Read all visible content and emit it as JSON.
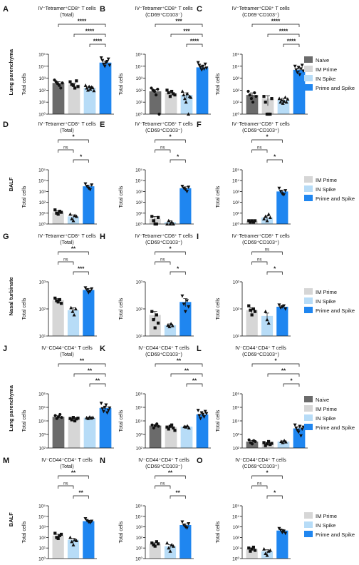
{
  "colors": {
    "Naive": "#6b6b6b",
    "IM Prime": "#d6d6d6",
    "IN Spike": "#b7dcf7",
    "Prime and Spike": "#1f86f0"
  },
  "row_labels": [
    "Lung parenchyma",
    "BALF",
    "Nasal turbinate",
    "Lung parenchyma",
    "BALF"
  ],
  "legends": [
    [
      "Naive",
      "IM Prime",
      "IN Spike",
      "Prime and Spike"
    ],
    [
      "IM Prime",
      "IN Spike",
      "Prime and Spike"
    ],
    [
      "IM Prime",
      "IN Spike",
      "Prime and Spike"
    ],
    [
      "Naive",
      "IM Prime",
      "IN Spike",
      "Prime and Spike"
    ],
    [
      "IM Prime",
      "IN Spike",
      "Prime and Spike"
    ]
  ],
  "chart_data": [
    {
      "panel": "A",
      "type": "bar",
      "title": [
        "IV⁻Tetramer⁺CD8⁺ T cells",
        "(Total)"
      ],
      "ylabel": "Total cells",
      "yscale": "log",
      "ylim": [
        1,
        100000
      ],
      "yticks": [
        "10⁰",
        "10¹",
        "10²",
        "10³",
        "10⁴",
        "10⁵"
      ],
      "categories": [
        "Naive",
        "IM Prime",
        "IN Spike",
        "Prime and Spike"
      ],
      "values": [
        400,
        300,
        160,
        20000
      ],
      "errors": [
        120,
        90,
        40,
        6000
      ],
      "points": [
        [
          700,
          500,
          350,
          250,
          150,
          400
        ],
        [
          500,
          300,
          250,
          150,
          600,
          200
        ],
        [
          250,
          150,
          100,
          200,
          120,
          180,
          160,
          90
        ],
        [
          50000,
          30000,
          15000,
          10000,
          20000,
          25000,
          40000,
          12000
        ]
      ],
      "sig": [
        [
          "****",
          0,
          3
        ],
        [
          "****",
          1,
          3
        ],
        [
          "****",
          2,
          3
        ]
      ]
    },
    {
      "panel": "B",
      "type": "bar",
      "title": [
        "IV⁻Tetramer⁺CD8⁺ T cells",
        "(CD69⁺CD103⁻)"
      ],
      "ylabel": "Total cells",
      "yscale": "log",
      "ylim": [
        1,
        100000
      ],
      "yticks": [
        "10⁰",
        "10¹",
        "10²",
        "10³",
        "10⁴",
        "10⁵"
      ],
      "categories": [
        "Naive",
        "IM Prime",
        "IN Spike",
        "Prime and Spike"
      ],
      "values": [
        80,
        60,
        40,
        8000
      ],
      "errors": [
        30,
        20,
        20,
        3000
      ],
      "points": [
        [
          150,
          100,
          80,
          40,
          120,
          1
        ],
        [
          100,
          60,
          30,
          80,
          50,
          40
        ],
        [
          80,
          40,
          20,
          10,
          50,
          1,
          30,
          25
        ],
        [
          20000,
          12000,
          8000,
          5000,
          10000,
          6000,
          15000,
          7000
        ]
      ],
      "sig": [
        [
          "***",
          0,
          3
        ],
        [
          "***",
          1,
          3
        ],
        [
          "****",
          2,
          3
        ]
      ]
    },
    {
      "panel": "C",
      "type": "bar",
      "title": [
        "IV⁻Tetramer⁺CD8⁺ T cells",
        "(CD69⁺CD103⁺)"
      ],
      "ylabel": "Total cells",
      "yscale": "log",
      "ylim": [
        1,
        100000
      ],
      "yticks": [
        "10⁰",
        "10¹",
        "10²",
        "10³",
        "10⁴",
        "10⁵"
      ],
      "categories": [
        "Naive",
        "IM Prime",
        "IN Spike",
        "Prime and Spike"
      ],
      "values": [
        40,
        20,
        15,
        5000
      ],
      "errors": [
        20,
        15,
        6,
        2000
      ],
      "points": [
        [
          80,
          40,
          20,
          10,
          60,
          30
        ],
        [
          30,
          10,
          1,
          1,
          1,
          20
        ],
        [
          20,
          10,
          15,
          8,
          12,
          25,
          10,
          18
        ],
        [
          10000,
          5000,
          3000,
          8000,
          2000,
          6000,
          12000,
          4000
        ]
      ],
      "sig": [
        [
          "****",
          0,
          3
        ],
        [
          "****",
          1,
          3
        ],
        [
          "****",
          2,
          3
        ]
      ]
    },
    {
      "panel": "D",
      "type": "bar",
      "title": [
        "IV⁻Tetramer⁺CD8⁺ T cells",
        "(Total)"
      ],
      "ylabel": "Total cells",
      "yscale": "log",
      "ylim": [
        1,
        100000
      ],
      "yticks": [
        "10⁰",
        "10¹",
        "10²",
        "10³",
        "10⁴",
        "10⁵"
      ],
      "categories": [
        "IM Prime",
        "IN Spike",
        "Prime and Spike"
      ],
      "values": [
        12,
        5,
        3000
      ],
      "errors": [
        4,
        2,
        800
      ],
      "points": [
        [
          20,
          10,
          8,
          15,
          12
        ],
        [
          8,
          3,
          2,
          6,
          5
        ],
        [
          5000,
          3000,
          2000,
          1500,
          4000
        ]
      ],
      "sig": [
        [
          "*",
          0,
          2
        ],
        [
          "ns",
          0,
          1
        ],
        [
          "*",
          1,
          2
        ]
      ]
    },
    {
      "panel": "E",
      "type": "bar",
      "title": [
        "IV⁻Tetramer⁺CD8⁺ T cells",
        "(CD69⁺CD103⁻)"
      ],
      "ylabel": "Total cells",
      "yscale": "log",
      "ylim": [
        1,
        100000
      ],
      "yticks": [
        "10⁰",
        "10¹",
        "10²",
        "10³",
        "10⁴",
        "10⁵"
      ],
      "categories": [
        "IM Prime",
        "IN Spike",
        "Prime and Spike"
      ],
      "values": [
        3,
        1.5,
        2000
      ],
      "errors": [
        2,
        0.5,
        700
      ],
      "points": [
        [
          5,
          2,
          1,
          1,
          4
        ],
        [
          1,
          2,
          1,
          1.5,
          1
        ],
        [
          3000,
          2000,
          1500,
          1000,
          2500
        ]
      ],
      "sig": [
        [
          "*",
          0,
          2
        ],
        [
          "ns",
          0,
          1
        ],
        [
          "*",
          1,
          2
        ]
      ]
    },
    {
      "panel": "F",
      "type": "bar",
      "title": [
        "IV⁻Tetramer⁺CD8⁺ T cells",
        "(CD69⁺CD103⁺)"
      ],
      "ylabel": "Total cells",
      "yscale": "log",
      "ylim": [
        1,
        100000
      ],
      "yticks": [
        "10⁰",
        "10¹",
        "10²",
        "10³",
        "10⁴",
        "10⁵"
      ],
      "categories": [
        "IM Prime",
        "IN Spike",
        "Prime and Spike"
      ],
      "values": [
        2,
        4,
        1000
      ],
      "errors": [
        0.5,
        1.5,
        300
      ],
      "points": [
        [
          2,
          1.5,
          2,
          1.5,
          2
        ],
        [
          3,
          5,
          2,
          8,
          4
        ],
        [
          2000,
          1000,
          600,
          500,
          1200
        ]
      ],
      "sig": [
        [
          "*",
          0,
          2
        ],
        [
          "ns",
          0,
          1
        ],
        [
          "*",
          1,
          2
        ]
      ]
    },
    {
      "panel": "G",
      "type": "bar",
      "title": [
        "IV⁻Tetramer⁺CD8⁺ T cells",
        "(Total)"
      ],
      "ylabel": "Total cells",
      "yscale": "log",
      "ylim": [
        10,
        1000
      ],
      "yticks": [
        "10¹",
        "10²",
        "10³"
      ],
      "categories": [
        "IM Prime",
        "IN Spike",
        "Prime and Spike"
      ],
      "values": [
        210,
        90,
        500
      ],
      "errors": [
        30,
        20,
        70
      ],
      "points": [
        [
          250,
          200,
          180,
          220,
          160
        ],
        [
          110,
          80,
          60,
          100
        ],
        [
          600,
          500,
          400,
          450,
          550
        ]
      ],
      "sig": [
        [
          "**",
          0,
          2
        ],
        [
          "ns",
          0,
          1
        ],
        [
          "***",
          1,
          2
        ]
      ]
    },
    {
      "panel": "H",
      "type": "bar",
      "title": [
        "IV⁻Tetramer⁺CD8⁺ T cells",
        "(CD69⁺CD103⁻)"
      ],
      "ylabel": "Total cells",
      "yscale": "log",
      "ylim": [
        10,
        1000
      ],
      "yticks": [
        "10¹",
        "10²",
        "10³"
      ],
      "categories": [
        "IM Prime",
        "IN Spike",
        "Prime and Spike"
      ],
      "values": [
        60,
        25,
        180
      ],
      "errors": [
        20,
        3,
        60
      ],
      "points": [
        [
          80,
          40,
          20,
          60,
          30
        ],
        [
          25,
          22,
          28,
          24
        ],
        [
          300,
          150,
          80,
          200,
          120
        ]
      ],
      "sig": [
        [
          "*",
          0,
          2
        ],
        [
          "ns",
          0,
          1
        ],
        [
          "*",
          1,
          2
        ]
      ]
    },
    {
      "panel": "I",
      "type": "bar",
      "title": [
        "IV⁻Tetramer⁺CD8⁺ T cells",
        "(CD69⁺CD103⁺)"
      ],
      "ylabel": "Total cells",
      "yscale": "log",
      "ylim": [
        10,
        1000
      ],
      "yticks": [
        "10¹",
        "10²",
        "10³"
      ],
      "categories": [
        "IM Prime",
        "IN Spike",
        "Prime and Spike"
      ],
      "values": [
        90,
        55,
        120
      ],
      "errors": [
        20,
        15,
        10
      ],
      "points": [
        [
          130,
          90,
          60,
          100,
          80
        ],
        [
          80,
          40,
          30
        ],
        [
          140,
          110,
          120,
          130,
          100
        ]
      ],
      "sig": [
        [
          "ns",
          0,
          2
        ],
        [
          "ns",
          0,
          1
        ],
        [
          "*",
          1,
          2
        ]
      ]
    },
    {
      "panel": "J",
      "type": "bar",
      "title": [
        "IV⁻CD44⁺CD4⁺ T cells",
        "(Total)"
      ],
      "ylabel": "Total cells",
      "yscale": "log",
      "ylim": [
        100,
        1000000
      ],
      "yticks": [
        "10²",
        "10³",
        "10⁴",
        "10⁵",
        "10⁶"
      ],
      "categories": [
        "Naive",
        "IM Prime",
        "IN Spike",
        "Prime and Spike"
      ],
      "values": [
        20000,
        15000,
        17000,
        90000
      ],
      "errors": [
        4000,
        2000,
        2000,
        20000
      ],
      "points": [
        [
          25000,
          15000,
          20000,
          30000,
          18000
        ],
        [
          15000,
          12000,
          18000,
          10000,
          14000,
          16000
        ],
        [
          17000,
          15000,
          19000,
          16000,
          18000
        ],
        [
          200000,
          80000,
          50000,
          100000,
          150000,
          40000,
          60000,
          90000
        ]
      ],
      "sig": [
        [
          "**",
          0,
          3
        ],
        [
          "**",
          1,
          3
        ],
        [
          "**",
          2,
          3
        ]
      ]
    },
    {
      "panel": "K",
      "type": "bar",
      "title": [
        "IV⁻CD44⁺CD4⁺ T cells",
        "(CD69⁺CD103⁻)"
      ],
      "ylabel": "Total cells",
      "yscale": "log",
      "ylim": [
        100,
        1000000
      ],
      "yticks": [
        "10²",
        "10³",
        "10⁴",
        "10⁵",
        "10⁶"
      ],
      "categories": [
        "Naive",
        "IM Prime",
        "IN Spike",
        "Prime and Spike"
      ],
      "values": [
        4500,
        3500,
        3800,
        30000
      ],
      "errors": [
        700,
        600,
        400,
        8000
      ],
      "points": [
        [
          5000,
          3000,
          4500,
          6000,
          4000
        ],
        [
          3500,
          2500,
          4000,
          5000,
          3000,
          2000
        ],
        [
          3800,
          3500,
          4200,
          3000
        ],
        [
          60000,
          25000,
          15000,
          40000,
          30000,
          20000,
          50000,
          35000
        ]
      ],
      "sig": [
        [
          "**",
          0,
          3
        ],
        [
          "**",
          1,
          3
        ],
        [
          "**",
          2,
          3
        ]
      ]
    },
    {
      "panel": "L",
      "type": "bar",
      "title": [
        "IV⁻CD44⁺CD4⁺ T cells",
        "(CD69⁺CD103⁺)"
      ],
      "ylabel": "Total cells",
      "yscale": "log",
      "ylim": [
        100,
        1000000
      ],
      "yticks": [
        "10²",
        "10³",
        "10⁴",
        "10⁵",
        "10⁶"
      ],
      "categories": [
        "Naive",
        "IM Prime",
        "IN Spike",
        "Prime and Spike"
      ],
      "values": [
        300,
        220,
        300,
        2800
      ],
      "errors": [
        60,
        40,
        40,
        900
      ],
      "points": [
        [
          400,
          250,
          200,
          350,
          300
        ],
        [
          250,
          150,
          200,
          300,
          180,
          220
        ],
        [
          300,
          250,
          350,
          280
        ],
        [
          5000,
          3000,
          2000,
          1500,
          4000,
          800,
          2500,
          3500
        ]
      ],
      "sig": [
        [
          "*",
          0,
          3
        ],
        [
          "**",
          1,
          3
        ],
        [
          "*",
          2,
          3
        ]
      ]
    },
    {
      "panel": "M",
      "type": "bar",
      "title": [
        "IV⁻CD44⁺CD4⁺ T cells",
        "(Total)"
      ],
      "ylabel": "Total cells",
      "yscale": "log",
      "ylim": [
        1,
        100000
      ],
      "yticks": [
        "10⁰",
        "10¹",
        "10²",
        "10³",
        "10⁴",
        "10⁵"
      ],
      "categories": [
        "IM Prime",
        "IN Spike",
        "Prime and Spike"
      ],
      "values": [
        150,
        60,
        3500
      ],
      "errors": [
        50,
        25,
        800
      ],
      "points": [
        [
          250,
          100,
          80,
          150,
          200
        ],
        [
          100,
          40,
          20,
          60,
          50
        ],
        [
          6000,
          4000,
          3000,
          2500,
          3500
        ]
      ],
      "sig": [
        [
          "**",
          0,
          2
        ],
        [
          "ns",
          0,
          1
        ],
        [
          "**",
          1,
          2
        ]
      ]
    },
    {
      "panel": "N",
      "type": "bar",
      "title": [
        "IV⁻CD44⁺CD4⁺ T cells",
        "(CD69⁺CD103⁻)"
      ],
      "ylabel": "Total cells",
      "yscale": "log",
      "ylim": [
        1,
        100000
      ],
      "yticks": [
        "10⁰",
        "10¹",
        "10²",
        "10³",
        "10⁴",
        "10⁵"
      ],
      "categories": [
        "IM Prime",
        "IN Spike",
        "Prime and Spike"
      ],
      "values": [
        25,
        15,
        1500
      ],
      "errors": [
        6,
        6,
        400
      ],
      "points": [
        [
          30,
          20,
          15,
          40,
          25
        ],
        [
          30,
          10,
          5,
          20,
          15
        ],
        [
          3000,
          1500,
          1000,
          800,
          2000
        ]
      ],
      "sig": [
        [
          "**",
          0,
          2
        ],
        [
          "ns",
          0,
          1
        ],
        [
          "**",
          1,
          2
        ]
      ]
    },
    {
      "panel": "O",
      "type": "bar",
      "title": [
        "IV⁻CD44⁺CD4⁺ T cells",
        "(CD69⁺CD103⁺)"
      ],
      "ylabel": "Total cells",
      "yscale": "log",
      "ylim": [
        1,
        100000
      ],
      "yticks": [
        "10⁰",
        "10¹",
        "10²",
        "10³",
        "10⁴",
        "10⁵"
      ],
      "categories": [
        "IM Prime",
        "IN Spike",
        "Prime and Spike"
      ],
      "values": [
        8,
        5,
        450
      ],
      "errors": [
        2,
        2,
        120
      ],
      "points": [
        [
          10,
          5,
          8,
          12,
          6
        ],
        [
          8,
          3,
          2,
          5,
          6
        ],
        [
          700,
          500,
          300,
          400,
          250
        ]
      ],
      "sig": [
        [
          "*",
          0,
          2
        ],
        [
          "ns",
          0,
          1
        ],
        [
          "*",
          1,
          2
        ]
      ]
    }
  ]
}
